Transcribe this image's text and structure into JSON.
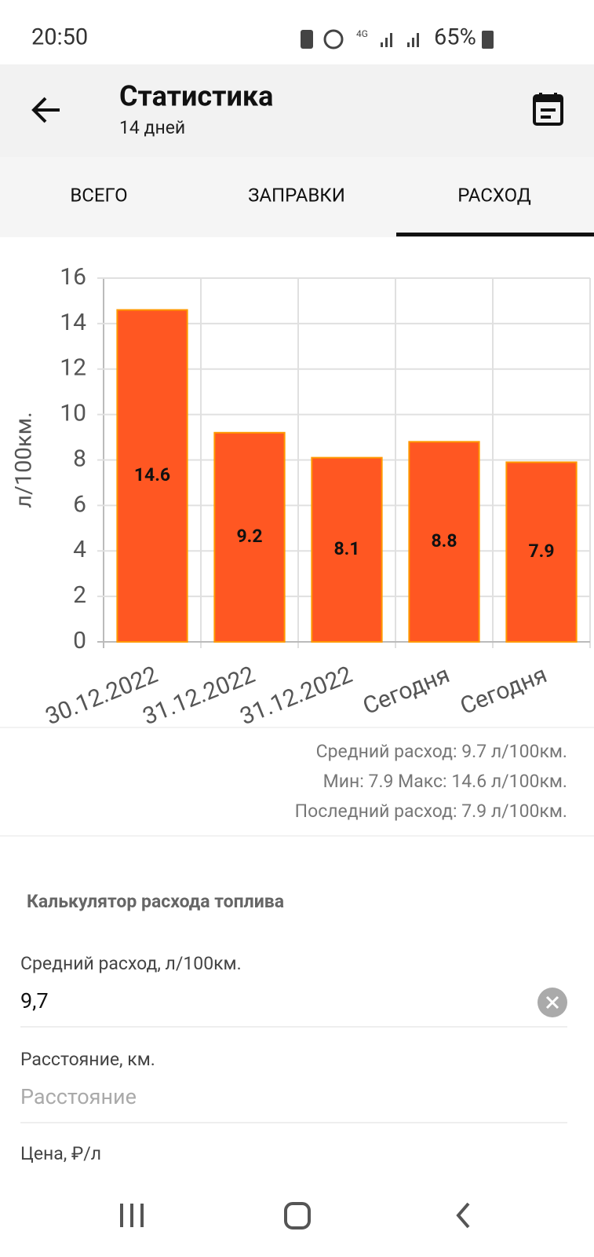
{
  "status_bar": {
    "time": "20:50",
    "battery": "65%"
  },
  "app_bar": {
    "title": "Статистика",
    "subtitle": "14 дней"
  },
  "tabs": [
    "ВСЕГО",
    "ЗАПРАВКИ",
    "РАСХОД"
  ],
  "chart_data": {
    "type": "bar",
    "y_label": "л/100км.",
    "categories": [
      "30.12.2022",
      "31.12.2022",
      "31.12.2022",
      "Сегодня",
      "Сегодня"
    ],
    "values": [
      14.6,
      9.2,
      8.1,
      8.8,
      7.9
    ],
    "color": "#ff5722",
    "ylim": [
      0,
      16
    ],
    "yticks": [
      0,
      2,
      4,
      6,
      8,
      10,
      12,
      14,
      16
    ],
    "grid": true
  },
  "summary": [
    "Средний расход: 9.7 л/100км.",
    "Мин: 7.9 Макс: 14.6 л/100км.",
    "Последний расход: 7.9 л/100км."
  ],
  "calculator": {
    "title": "Калькулятор расхода топлива",
    "fields": [
      {
        "label": "Средний расход, л/100км.",
        "value": "9,7"
      },
      {
        "label": "Расстояние, км.",
        "placeholder": "Расстояние"
      },
      {
        "label": "Цена, ₽/л"
      }
    ]
  }
}
